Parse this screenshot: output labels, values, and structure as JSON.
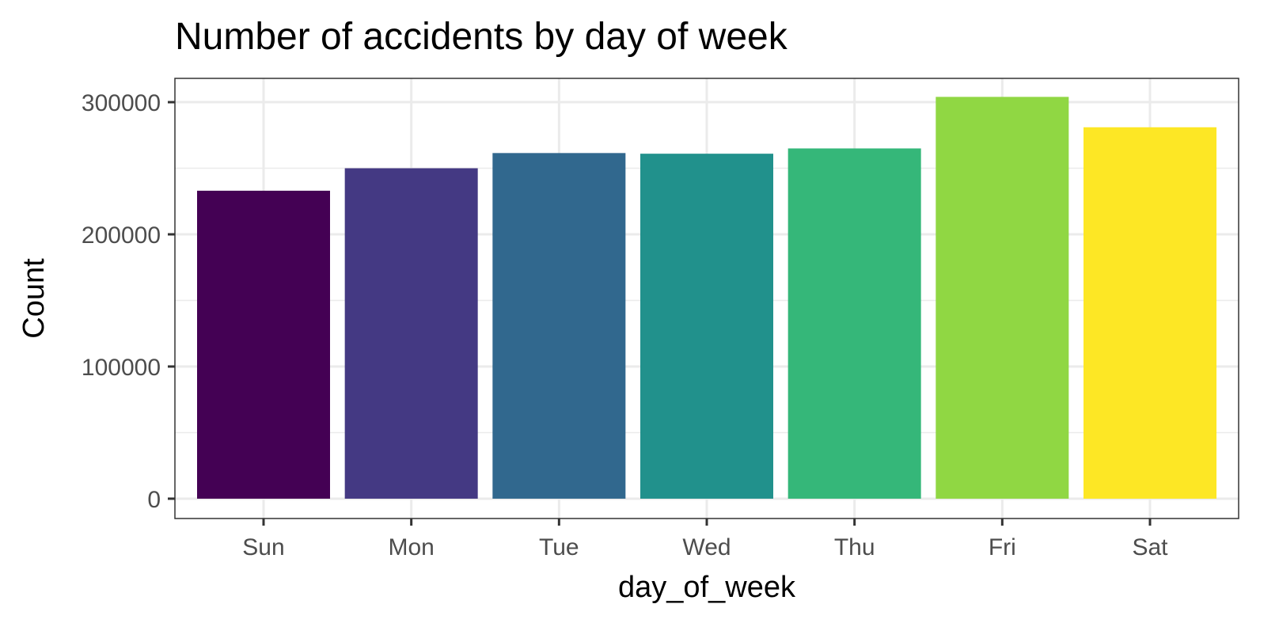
{
  "chart_data": {
    "type": "bar",
    "title": "Number of accidents by day of week",
    "xlabel": "day_of_week",
    "ylabel": "Count",
    "categories": [
      "Sun",
      "Mon",
      "Tue",
      "Wed",
      "Thu",
      "Fri",
      "Sat"
    ],
    "values": [
      233000,
      250000,
      261500,
      261000,
      265000,
      304000,
      281000
    ],
    "colors": [
      "#440154",
      "#443983",
      "#31688e",
      "#21918c",
      "#35b779",
      "#90d743",
      "#fde725"
    ],
    "yticks": [
      0,
      100000,
      200000,
      300000
    ],
    "ytick_labels": [
      "0",
      "100000",
      "200000",
      "300000"
    ],
    "ylim": [
      -15000,
      318000
    ],
    "grid": true,
    "legend": "none"
  }
}
